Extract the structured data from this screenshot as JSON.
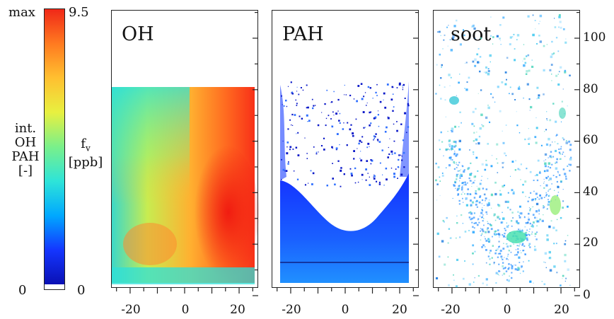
{
  "colorbar": {
    "left_top": "max",
    "left_bottom": "0",
    "right_top": "9.5",
    "right_bottom": "0",
    "left_label_lines": [
      "int.",
      "OH",
      "PAH",
      "[-]"
    ],
    "right_label_main": "f",
    "right_label_sub": "v",
    "right_label_unit": "[ppb]",
    "colors": [
      "#0a10b4",
      "#1436ff",
      "#00a8ff",
      "#2ee4d8",
      "#7af08a",
      "#e8f040",
      "#ffc030",
      "#ff7a20",
      "#f02818"
    ]
  },
  "chart_data": [
    {
      "type": "heatmap",
      "title": "OH",
      "x_ticks": [
        -20,
        0,
        20
      ],
      "xlim": [
        -27,
        27
      ],
      "ylim": [
        0,
        110
      ],
      "field_top": 80,
      "field_bottom": 10
    },
    {
      "type": "heatmap",
      "title": "PAH",
      "x_ticks": [
        -20,
        0,
        20
      ],
      "xlim": [
        -27,
        27
      ],
      "ylim": [
        0,
        110
      ],
      "field_top": 80,
      "field_bottom": 10
    },
    {
      "type": "heatmap",
      "title": "soot",
      "x_ticks": [
        -20,
        0,
        20
      ],
      "y_ticks": [
        0,
        20,
        40,
        60,
        80,
        100
      ],
      "xlim": [
        -27,
        27
      ],
      "ylim": [
        0,
        110
      ]
    }
  ]
}
